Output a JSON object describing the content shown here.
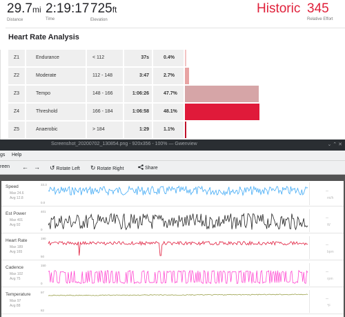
{
  "summary": {
    "distance": {
      "value": "29.7",
      "unit": "mi",
      "label": "Distance"
    },
    "time": {
      "value": "2:19:17",
      "label": "Time"
    },
    "elevation": {
      "value": "725",
      "unit": "ft",
      "label": "Elevation"
    },
    "historic": "Historic",
    "relative_effort": {
      "value": "345",
      "label": "Relative Effort"
    }
  },
  "heart_rate_analysis": {
    "title": "Heart Rate Analysis",
    "zones": [
      {
        "zone": "Z1",
        "name": "Endurance",
        "range": "< 112",
        "time": "37s",
        "percent": "0.4%",
        "fraction": 0.004,
        "color": "#f3c4c4"
      },
      {
        "zone": "Z2",
        "name": "Moderate",
        "range": "112 - 148",
        "time": "3:47",
        "percent": "2.7%",
        "fraction": 0.027,
        "color": "#e8a3a3"
      },
      {
        "zone": "Z3",
        "name": "Tempo",
        "range": "148 - 166",
        "time": "1:06:26",
        "percent": "47.7%",
        "fraction": 0.477,
        "color": "#d6a5a7"
      },
      {
        "zone": "Z4",
        "name": "Threshold",
        "range": "166 - 184",
        "time": "1:06:58",
        "percent": "48.1%",
        "fraction": 0.481,
        "color": "#e01a3a"
      },
      {
        "zone": "Z5",
        "name": "Anaerobic",
        "range": "> 184",
        "time": "1:29",
        "percent": "1.1%",
        "fraction": 0.011,
        "color": "#c0102a"
      }
    ]
  },
  "viewer": {
    "title": "Screenshot_20200702_130854.png - 920x356 - 100% — Gwenview",
    "window_controls": "⌄ ⌃ ✕",
    "menu": [
      "gs",
      "Help"
    ],
    "toolbar": {
      "fullscreen": "reen",
      "back": "←",
      "forward": "→",
      "rotate_left": "Rotate Left",
      "rotate_right": "Rotate Right",
      "share": "Share"
    }
  },
  "streams": [
    {
      "name": "Speed",
      "stat1": "Max 24.6",
      "stat2": "Avg 12.8",
      "unit": "mi/h",
      "value": "--",
      "ticks": [
        "33.3",
        "0.0"
      ],
      "color": "#3fa9f5"
    },
    {
      "name": "Est Power",
      "stat1": "Max 401",
      "stat2": "Avg 92",
      "unit": "W",
      "value": "--",
      "ticks": [
        "401",
        "0"
      ],
      "color": "#222222"
    },
    {
      "name": "Heart Rate",
      "stat1": "Max 189",
      "stat2": "Avg 165",
      "unit": "bpm",
      "value": "--",
      "ticks": [
        "190",
        "50"
      ],
      "color": "#e01a3a"
    },
    {
      "name": "Cadence",
      "stat1": "Max 102",
      "stat2": "Avg 75",
      "unit": "rpm",
      "value": "--",
      "ticks": [
        "150",
        "0"
      ],
      "color": "#ff33cc"
    },
    {
      "name": "Temperature",
      "stat1": "Max 97",
      "stat2": "Avg 88",
      "unit": "°F",
      "value": "--",
      "ticks": [
        "97",
        "82"
      ],
      "color": "#9aa04a"
    }
  ],
  "icons": {
    "rotate_left": "rotate-left-icon",
    "rotate_right": "rotate-right-icon",
    "share": "share-icon"
  }
}
